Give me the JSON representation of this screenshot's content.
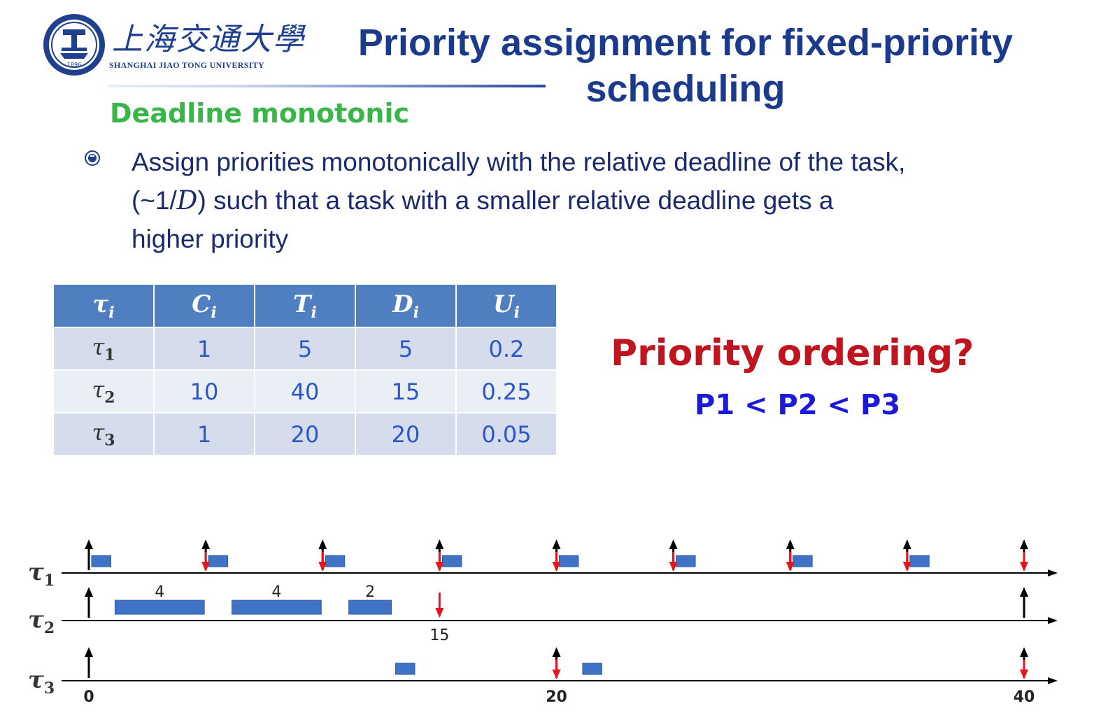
{
  "header": {
    "university_name_cn": "上海交通大學",
    "university_name_en": "SHANGHAI JIAO TONG UNIVERSITY",
    "seal_year": "1896",
    "title": "Priority assignment for fixed-priority scheduling"
  },
  "subtitle": "Deadline monotonic",
  "bullet": {
    "line1": "Assign priorities monotonically with the relative deadline of the task,",
    "line2_pre": "(~1/",
    "line2_math": "D",
    "line2_post": ") such that a task with a smaller relative deadline gets a",
    "line3": "higher priority"
  },
  "table": {
    "headers": [
      {
        "sym": "τ",
        "sub": "i"
      },
      {
        "sym": "C",
        "sub": "i"
      },
      {
        "sym": "T",
        "sub": "i"
      },
      {
        "sym": "D",
        "sub": "i"
      },
      {
        "sym": "U",
        "sub": "i"
      }
    ],
    "rows": [
      {
        "task": "τ",
        "sub": "1",
        "C": "1",
        "T": "5",
        "D": "5",
        "U": "0.2"
      },
      {
        "task": "τ",
        "sub": "2",
        "C": "10",
        "T": "40",
        "D": "15",
        "U": "0.25"
      },
      {
        "task": "τ",
        "sub": "3",
        "C": "1",
        "T": "20",
        "D": "20",
        "U": "0.05"
      }
    ]
  },
  "question": "Priority ordering?",
  "answer": "P1 < P2 < P3",
  "schedule": {
    "time_ticks": [
      "0",
      "20",
      "40"
    ],
    "deadline_label": "15",
    "tasks": [
      {
        "label": "τ",
        "sub": "1",
        "releases": [
          0,
          5,
          10,
          15,
          20,
          25,
          30,
          35,
          40
        ],
        "deadlines": [
          5,
          10,
          15,
          20,
          25,
          30,
          35,
          40
        ],
        "execs": [
          [
            0,
            1
          ],
          [
            5,
            6
          ],
          [
            10,
            11
          ],
          [
            15,
            16
          ],
          [
            20,
            21
          ],
          [
            25,
            26
          ],
          [
            30,
            31
          ],
          [
            35,
            36
          ]
        ],
        "exec_labels": []
      },
      {
        "label": "τ",
        "sub": "2",
        "releases": [
          0,
          40
        ],
        "deadlines": [
          15
        ],
        "execs": [
          [
            1,
            5
          ],
          [
            6,
            10
          ],
          [
            11,
            13
          ]
        ],
        "exec_labels": [
          "4",
          "4",
          "2"
        ]
      },
      {
        "label": "τ",
        "sub": "3",
        "releases": [
          0,
          20,
          40
        ],
        "deadlines": [
          20,
          40
        ],
        "execs": [
          [
            13,
            14
          ],
          [
            21,
            22
          ]
        ],
        "exec_labels": []
      }
    ]
  }
}
